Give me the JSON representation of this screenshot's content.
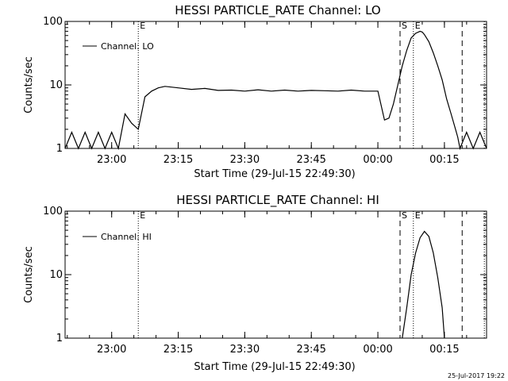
{
  "footer": {
    "date_stamp": "25-Jul-2017 19:22"
  },
  "chart_data": [
    {
      "type": "line",
      "title": "HESSI PARTICLE_RATE Channel: LO",
      "xlabel": "Start Time (29-Jul-15 22:49:30)",
      "ylabel": "Counts/sec",
      "yscale": "log",
      "ylim": [
        1,
        100
      ],
      "xlim": [
        "22:49:30",
        "00:24:30"
      ],
      "x_ticks": [
        "23:00",
        "23:15",
        "23:30",
        "23:45",
        "00:00",
        "00:15"
      ],
      "y_ticks": [
        "1",
        "10",
        "100"
      ],
      "legend": {
        "label": "Channel: LO",
        "position": "top-left"
      },
      "event_markers": [
        {
          "time": "23:06:00",
          "style": "dotted",
          "label": "E"
        },
        {
          "time": "00:05:00",
          "style": "dashed",
          "label": "S"
        },
        {
          "time": "00:08:00",
          "style": "dotted",
          "label": "E"
        },
        {
          "time": "00:19:00",
          "style": "dashed",
          "label": ""
        },
        {
          "time": "00:24:00",
          "style": "dotted",
          "label": ""
        }
      ],
      "series": [
        {
          "name": "Channel: LO",
          "x": [
            "22:49:30",
            "22:51:00",
            "22:52:30",
            "22:54:00",
            "22:55:30",
            "22:57:00",
            "22:58:30",
            "23:00:00",
            "23:01:30",
            "23:03:00",
            "23:04:30",
            "23:06:00",
            "23:07:30",
            "23:09:00",
            "23:10:30",
            "23:12:00",
            "23:15:00",
            "23:18:00",
            "23:21:00",
            "23:24:00",
            "23:27:00",
            "23:30:00",
            "23:33:00",
            "23:36:00",
            "23:39:00",
            "23:42:00",
            "23:45:00",
            "23:48:00",
            "23:51:00",
            "23:54:00",
            "23:57:00",
            "00:00:00",
            "00:01:30",
            "00:02:30",
            "00:03:30",
            "00:04:30",
            "00:05:30",
            "00:06:30",
            "00:07:30",
            "00:08:30",
            "00:09:30",
            "00:10:00",
            "00:10:30",
            "00:11:30",
            "00:12:30",
            "00:13:30",
            "00:14:30",
            "00:15:30",
            "00:16:30",
            "00:17:30",
            "00:18:00",
            "00:18:30",
            "00:20:00",
            "00:21:30",
            "00:23:00",
            "00:24:30"
          ],
          "y": [
            1,
            1.8,
            1,
            1.8,
            1,
            1.8,
            1,
            1.8,
            1,
            3.5,
            2.5,
            2.0,
            6.5,
            8.0,
            9.0,
            9.5,
            9.0,
            8.5,
            8.8,
            8.2,
            8.3,
            8.0,
            8.4,
            8.0,
            8.3,
            8.0,
            8.2,
            8.1,
            8.0,
            8.3,
            8.0,
            8.0,
            2.8,
            3.0,
            5.0,
            10,
            20,
            35,
            55,
            65,
            70,
            68,
            62,
            48,
            32,
            20,
            12,
            6,
            3.5,
            2,
            1.5,
            1,
            1.8,
            1,
            1.8,
            1
          ]
        }
      ]
    },
    {
      "type": "line",
      "title": "HESSI PARTICLE_RATE Channel: HI",
      "xlabel": "Start Time (29-Jul-15 22:49:30)",
      "ylabel": "Counts/sec",
      "yscale": "log",
      "ylim": [
        1,
        100
      ],
      "xlim": [
        "22:49:30",
        "00:24:30"
      ],
      "x_ticks": [
        "23:00",
        "23:15",
        "23:30",
        "23:45",
        "00:00",
        "00:15"
      ],
      "y_ticks": [
        "1",
        "10",
        "100"
      ],
      "legend": {
        "label": "Channel: HI",
        "position": "top-left"
      },
      "event_markers": [
        {
          "time": "23:06:00",
          "style": "dotted",
          "label": "E"
        },
        {
          "time": "00:05:00",
          "style": "dashed",
          "label": "S"
        },
        {
          "time": "00:08:00",
          "style": "dotted",
          "label": "E"
        },
        {
          "time": "00:19:00",
          "style": "dashed",
          "label": ""
        },
        {
          "time": "00:24:00",
          "style": "dotted",
          "label": ""
        }
      ],
      "series": [
        {
          "name": "Channel: HI",
          "x": [
            "00:05:30",
            "00:06:30",
            "00:07:30",
            "00:08:30",
            "00:09:30",
            "00:10:30",
            "00:11:30",
            "00:12:30",
            "00:13:30",
            "00:14:30",
            "00:15:00"
          ],
          "y": [
            1,
            3,
            10,
            22,
            38,
            48,
            40,
            22,
            9,
            3,
            1
          ]
        }
      ]
    }
  ]
}
